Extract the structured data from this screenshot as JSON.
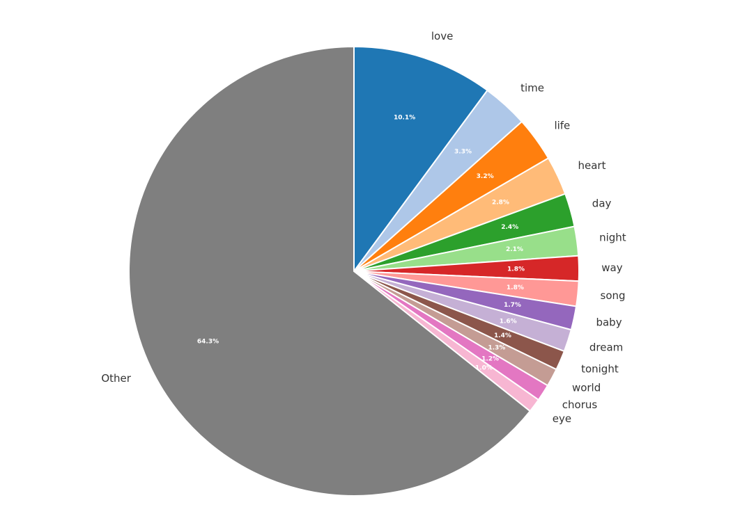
{
  "chart_data": {
    "type": "pie",
    "categories": [
      "love",
      "time",
      "life",
      "heart",
      "day",
      "night",
      "way",
      "song",
      "baby",
      "dream",
      "tonight",
      "world",
      "chorus",
      "eye",
      "Other"
    ],
    "values": [
      10.1,
      3.3,
      3.2,
      2.8,
      2.4,
      2.1,
      1.8,
      1.8,
      1.7,
      1.6,
      1.4,
      1.3,
      1.2,
      1.0,
      64.3
    ],
    "value_labels": [
      "10.1%",
      "3.3%",
      "3.2%",
      "2.8%",
      "2.4%",
      "2.1%",
      "1.8%",
      "1.8%",
      "1.7%",
      "1.6%",
      "1.4%",
      "1.3%",
      "1.2%",
      "1.0%",
      "64.3%"
    ],
    "colors": [
      "#1f77b4",
      "#aec7e8",
      "#ff7f0e",
      "#ffbb78",
      "#2ca02c",
      "#98df8a",
      "#d62728",
      "#ff9896",
      "#9467bd",
      "#c5b0d5",
      "#8c564b",
      "#c49c94",
      "#e377c2",
      "#f7b6d2",
      "#7f7f7f"
    ]
  }
}
